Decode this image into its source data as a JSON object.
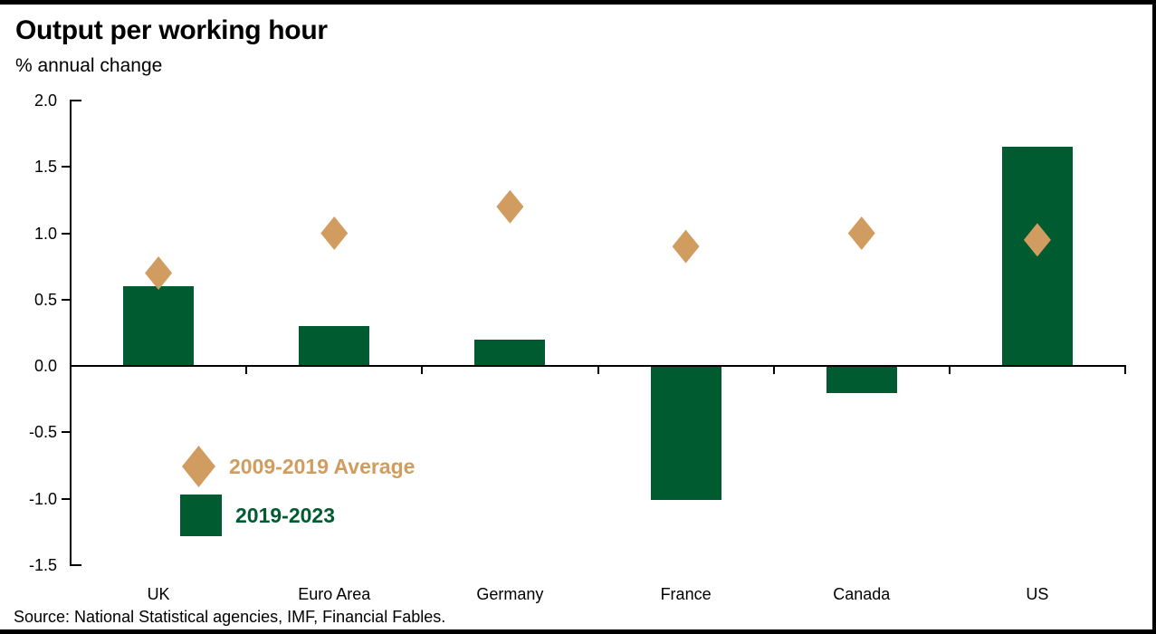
{
  "header": {
    "title": "Output per working hour",
    "subtitle": "% annual change"
  },
  "source": "Source: National Statistical agencies, IMF, Financial Fables.",
  "colors": {
    "bar_green": "#005C30",
    "diamond_tan": "#D09C60",
    "axis": "#000000"
  },
  "legend": {
    "items": [
      {
        "label": "2009-2019 Average",
        "marker": "diamond-icon",
        "color": "#D09C60"
      },
      {
        "label": "2019-2023",
        "marker": "square-icon",
        "color": "#005C30"
      }
    ],
    "position": "inside-lower-left"
  },
  "chart_data": {
    "type": "bar",
    "title": "Output per working hour",
    "subtitle": "% annual change",
    "categories": [
      "UK",
      "Euro Area",
      "Germany",
      "France",
      "Canada",
      "US"
    ],
    "series": [
      {
        "name": "2019-2023",
        "type": "bar",
        "color": "#005C30",
        "values": [
          0.6,
          0.3,
          0.2,
          -1.0,
          -0.2,
          1.65
        ]
      },
      {
        "name": "2009-2019 Average",
        "type": "scatter",
        "marker": "diamond",
        "color": "#D09C60",
        "values": [
          0.7,
          1.0,
          1.2,
          0.9,
          1.0,
          0.95
        ]
      }
    ],
    "ylim": [
      -1.5,
      2.0
    ],
    "yticks": [
      2.0,
      1.5,
      1.0,
      0.5,
      0.0,
      -0.5,
      -1.0,
      -1.5
    ],
    "ytick_format": "one-decimal",
    "grid": false,
    "legend_position": "inside-lower-left"
  }
}
